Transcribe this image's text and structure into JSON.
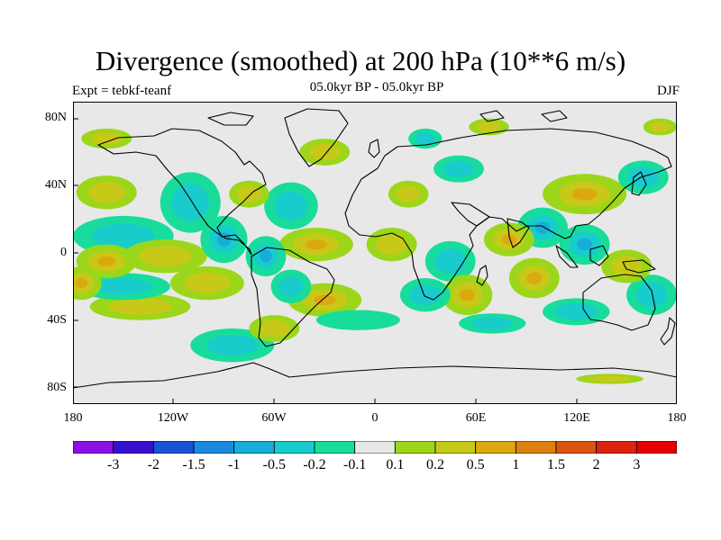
{
  "title": "Divergence (smoothed) at 200 hPa (10**6 m/s)",
  "experiment": "Expt = tebkf-teanf",
  "period": "05.0kyr BP - 05.0kyr BP",
  "season": "DJF",
  "lat_labels": [
    "80N",
    "40N",
    "0",
    "40S",
    "80S"
  ],
  "lon_labels": [
    "180",
    "120W",
    "60W",
    "0",
    "60E",
    "120E",
    "180"
  ],
  "colorbar": {
    "labels": [
      "-3",
      "-2",
      "-1.5",
      "-1",
      "-0.5",
      "-0.2",
      "-0.1",
      "0.1",
      "0.2",
      "0.5",
      "1",
      "1.5",
      "2",
      "3"
    ],
    "colors": [
      "#8a10e6",
      "#3a10d0",
      "#1a52d8",
      "#1a8ae0",
      "#18acd8",
      "#18cccc",
      "#18dc9c",
      "#e8e8e8",
      "#9cd61a",
      "#c8c818",
      "#dca810",
      "#dc8010",
      "#dc5410",
      "#dc2410",
      "#e80000"
    ]
  },
  "chart_data": {
    "type": "heatmap",
    "title": "Divergence (smoothed) at 200 hPa (10**6 m/s)",
    "subtitle": "05.0kyr BP - 05.0kyr BP",
    "experiment": "Expt = tebkf-teanf",
    "season": "DJF",
    "x_range": [
      -180,
      180
    ],
    "y_range": [
      -90,
      90
    ],
    "levels": [
      -3,
      -2,
      -1.5,
      -1,
      -0.5,
      -0.2,
      -0.1,
      0.1,
      0.2,
      0.5,
      1,
      1.5,
      2,
      3
    ],
    "features": [
      {
        "lon": -150,
        "lat": 10,
        "rx": 30,
        "ry": 12,
        "value": -0.3
      },
      {
        "lon": -160,
        "lat": 36,
        "rx": 18,
        "ry": 10,
        "value": 0.3
      },
      {
        "lon": -110,
        "lat": 30,
        "rx": 18,
        "ry": 18,
        "value": -0.4
      },
      {
        "lon": -90,
        "lat": 8,
        "rx": 14,
        "ry": 14,
        "value": -0.6
      },
      {
        "lon": -125,
        "lat": -2,
        "rx": 25,
        "ry": 10,
        "value": 0.4
      },
      {
        "lon": -160,
        "lat": -5,
        "rx": 18,
        "ry": 10,
        "value": 0.8
      },
      {
        "lon": -175,
        "lat": -18,
        "rx": 12,
        "ry": 10,
        "value": 0.7
      },
      {
        "lon": -150,
        "lat": -20,
        "rx": 28,
        "ry": 8,
        "value": -0.3
      },
      {
        "lon": -100,
        "lat": -18,
        "rx": 22,
        "ry": 10,
        "value": 0.3
      },
      {
        "lon": -140,
        "lat": -32,
        "rx": 30,
        "ry": 8,
        "value": 0.25
      },
      {
        "lon": -85,
        "lat": -55,
        "rx": 25,
        "ry": 10,
        "value": -0.3
      },
      {
        "lon": -50,
        "lat": 28,
        "rx": 16,
        "ry": 14,
        "value": -0.5
      },
      {
        "lon": -75,
        "lat": 35,
        "rx": 12,
        "ry": 8,
        "value": 0.4
      },
      {
        "lon": -35,
        "lat": 5,
        "rx": 22,
        "ry": 10,
        "value": 0.8
      },
      {
        "lon": -65,
        "lat": -2,
        "rx": 12,
        "ry": 12,
        "value": -0.8
      },
      {
        "lon": -50,
        "lat": -20,
        "rx": 12,
        "ry": 10,
        "value": -0.4
      },
      {
        "lon": -30,
        "lat": -28,
        "rx": 22,
        "ry": 10,
        "value": 0.6
      },
      {
        "lon": -60,
        "lat": -45,
        "rx": 15,
        "ry": 8,
        "value": 0.4
      },
      {
        "lon": -10,
        "lat": -40,
        "rx": 25,
        "ry": 6,
        "value": -0.2
      },
      {
        "lon": 20,
        "lat": 35,
        "rx": 12,
        "ry": 8,
        "value": 0.3
      },
      {
        "lon": 10,
        "lat": 5,
        "rx": 15,
        "ry": 10,
        "value": 0.4
      },
      {
        "lon": 45,
        "lat": -5,
        "rx": 15,
        "ry": 12,
        "value": -0.5
      },
      {
        "lon": 55,
        "lat": -25,
        "rx": 15,
        "ry": 12,
        "value": 0.7
      },
      {
        "lon": 30,
        "lat": -25,
        "rx": 15,
        "ry": 10,
        "value": -0.4
      },
      {
        "lon": 70,
        "lat": -42,
        "rx": 20,
        "ry": 6,
        "value": -0.25
      },
      {
        "lon": 50,
        "lat": 50,
        "rx": 15,
        "ry": 8,
        "value": -0.3
      },
      {
        "lon": 30,
        "lat": 68,
        "rx": 10,
        "ry": 6,
        "value": -0.3
      },
      {
        "lon": 68,
        "lat": 75,
        "rx": 12,
        "ry": 5,
        "value": 0.3
      },
      {
        "lon": 80,
        "lat": 8,
        "rx": 15,
        "ry": 10,
        "value": 0.8
      },
      {
        "lon": 100,
        "lat": 15,
        "rx": 15,
        "ry": 12,
        "value": -0.6
      },
      {
        "lon": 95,
        "lat": -15,
        "rx": 15,
        "ry": 12,
        "value": 0.5
      },
      {
        "lon": 125,
        "lat": 5,
        "rx": 15,
        "ry": 12,
        "value": -0.7
      },
      {
        "lon": 150,
        "lat": -8,
        "rx": 15,
        "ry": 10,
        "value": 0.4
      },
      {
        "lon": 125,
        "lat": 35,
        "rx": 25,
        "ry": 12,
        "value": 0.6
      },
      {
        "lon": 120,
        "lat": -35,
        "rx": 20,
        "ry": 8,
        "value": -0.3
      },
      {
        "lon": 165,
        "lat": -25,
        "rx": 15,
        "ry": 12,
        "value": -0.4
      },
      {
        "lon": 160,
        "lat": 45,
        "rx": 15,
        "ry": 10,
        "value": -0.3
      },
      {
        "lon": 170,
        "lat": 75,
        "rx": 10,
        "ry": 5,
        "value": 0.3
      },
      {
        "lon": -160,
        "lat": 68,
        "rx": 15,
        "ry": 6,
        "value": 0.4
      },
      {
        "lon": -30,
        "lat": 60,
        "rx": 15,
        "ry": 8,
        "value": 0.3
      },
      {
        "lon": 140,
        "lat": -75,
        "rx": 20,
        "ry": 3,
        "value": 0.3
      }
    ]
  }
}
